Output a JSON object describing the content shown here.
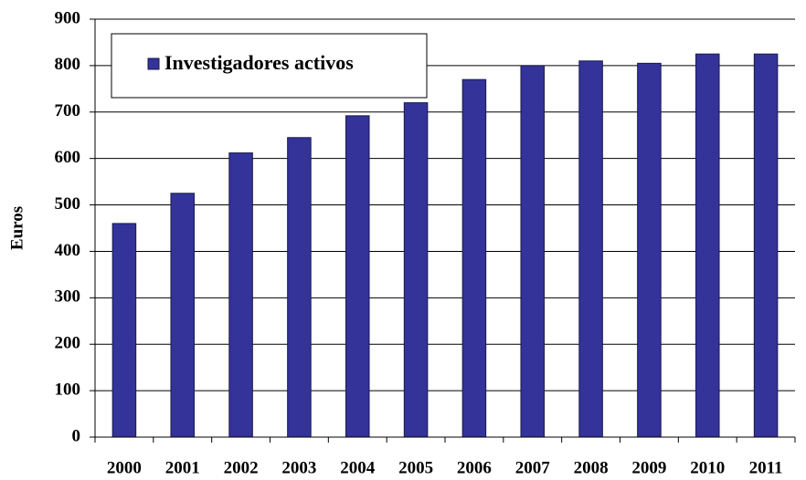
{
  "chart_data": {
    "type": "bar",
    "y_label": "Euros",
    "categories": [
      "2000",
      "2001",
      "2002",
      "2003",
      "2004",
      "2005",
      "2006",
      "2007",
      "2008",
      "2009",
      "2010",
      "2011"
    ],
    "series": [
      {
        "name": "Investigadores activos",
        "color": "#333399",
        "values": [
          460,
          525,
          612,
          645,
          692,
          720,
          770,
          800,
          810,
          805,
          825,
          825
        ]
      }
    ],
    "ylim": [
      0,
      900
    ],
    "yticks": [
      0,
      100,
      200,
      300,
      400,
      500,
      600,
      700,
      800,
      900
    ],
    "grid": true,
    "legend": "top-left"
  }
}
